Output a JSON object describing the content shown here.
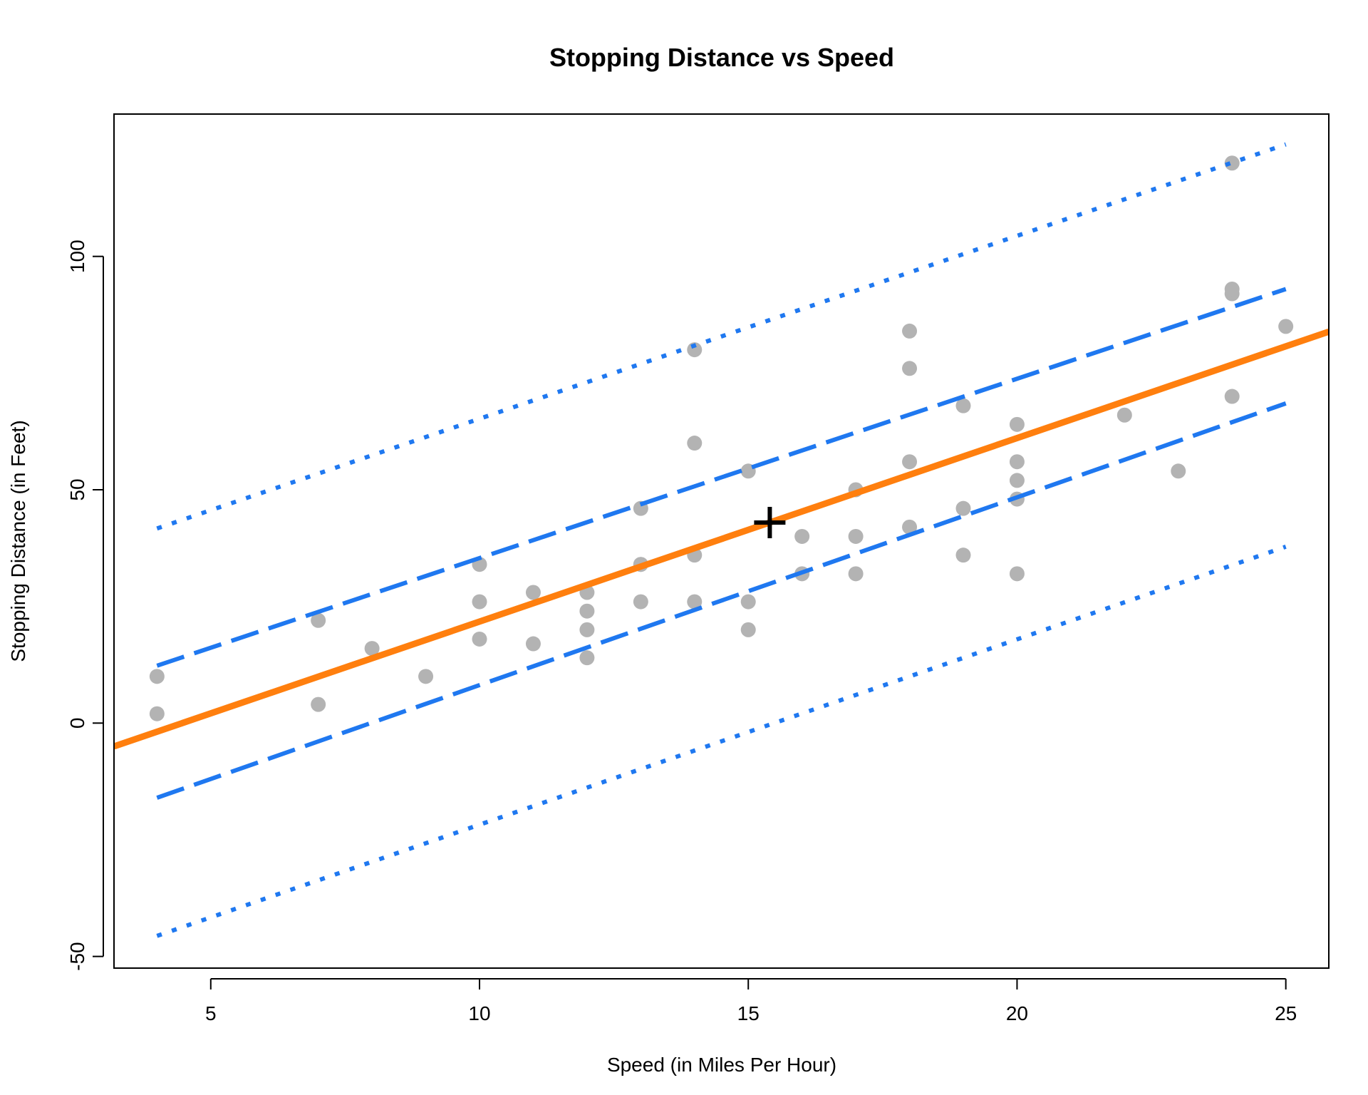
{
  "chart_data": {
    "type": "scatter",
    "title": "Stopping Distance vs Speed",
    "xlabel": "Speed (in Miles Per Hour)",
    "ylabel": "Stopping Distance (in Feet)",
    "xlim": [
      3.2,
      25.8
    ],
    "ylim": [
      -52.5,
      130.5
    ],
    "x_ticks": [
      5,
      10,
      15,
      20,
      25
    ],
    "y_ticks": [
      -50,
      0,
      50,
      100
    ],
    "points": {
      "color": "#b3b3b3",
      "x": [
        4,
        4,
        7,
        7,
        8,
        9,
        10,
        10,
        10,
        11,
        11,
        12,
        12,
        12,
        12,
        13,
        13,
        13,
        13,
        14,
        14,
        14,
        14,
        15,
        15,
        15,
        16,
        16,
        17,
        17,
        17,
        18,
        18,
        18,
        18,
        19,
        19,
        19,
        20,
        20,
        20,
        20,
        20,
        22,
        23,
        24,
        24,
        24,
        24,
        25
      ],
      "y": [
        2,
        10,
        4,
        22,
        16,
        10,
        18,
        26,
        34,
        17,
        28,
        14,
        20,
        24,
        28,
        26,
        34,
        34,
        46,
        26,
        36,
        60,
        80,
        20,
        26,
        54,
        32,
        40,
        32,
        40,
        50,
        42,
        56,
        76,
        84,
        36,
        46,
        68,
        32,
        48,
        52,
        56,
        64,
        66,
        54,
        70,
        92,
        93,
        120,
        85
      ]
    },
    "regression_line": {
      "intercept": -17.5791,
      "slope": 3.9324,
      "color": "#ff7f0e"
    },
    "mean_point": {
      "x": 15.4,
      "y": 42.98,
      "marker": "plus",
      "color": "#000000"
    },
    "confidence_band": {
      "style": "dashed",
      "color": "#1f78f0",
      "x": [
        4,
        25
      ],
      "upper": [
        12.3,
        93.0
      ],
      "lower": [
        -16.0,
        68.5
      ]
    },
    "prediction_band": {
      "style": "dotted",
      "color": "#1f78f0",
      "x": [
        4,
        25
      ],
      "upper": [
        41.7,
        124.0
      ],
      "lower": [
        -45.6,
        37.8
      ]
    },
    "grid": false,
    "legend": "none"
  }
}
